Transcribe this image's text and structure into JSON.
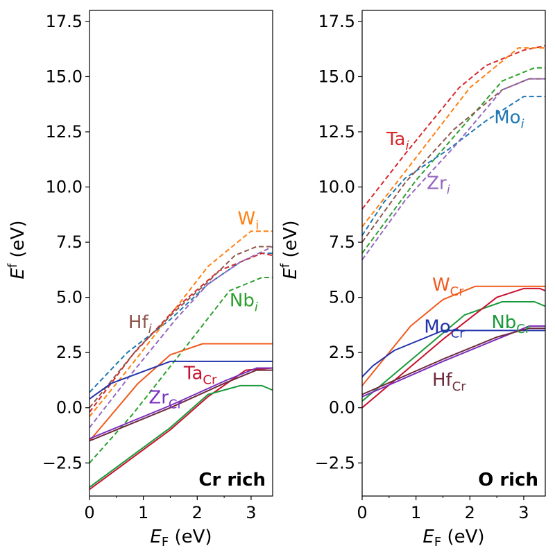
{
  "chart_data": [
    {
      "type": "line",
      "panel_title": "Cr rich",
      "title_placement": "bottom-right",
      "xlabel": {
        "main": "E",
        "sub": "F",
        "suffix": " (eV)"
      },
      "ylabel": {
        "main": "E",
        "sup": "f",
        "suffix": " (eV)"
      },
      "xlim": [
        0,
        3.4
      ],
      "ylim": [
        -4,
        18
      ],
      "xticks": [
        {
          "value": 0,
          "label": "0"
        },
        {
          "value": 1,
          "label": "1"
        },
        {
          "value": 2,
          "label": "2"
        },
        {
          "value": 3,
          "label": "3"
        }
      ],
      "yticks": [
        {
          "value": -2.5,
          "label": "−2.5"
        },
        {
          "value": 0,
          "label": "0.0"
        },
        {
          "value": 2.5,
          "label": "2.5"
        },
        {
          "value": 5,
          "label": "5.0"
        },
        {
          "value": 7.5,
          "label": "7.5"
        },
        {
          "value": 10,
          "label": "10.0"
        },
        {
          "value": 12.5,
          "label": "12.5"
        },
        {
          "value": 15,
          "label": "15.0"
        },
        {
          "value": 17.5,
          "label": "17.5"
        }
      ],
      "series": [
        {
          "name": "Mo_i",
          "style": "dashed",
          "color": "#1f77b4",
          "points": [
            [
              0,
              0.7
            ],
            [
              0.7,
              2.5
            ],
            [
              1.5,
              4.0
            ],
            [
              2.2,
              5.6
            ],
            [
              2.8,
              6.6
            ],
            [
              3.2,
              7.0
            ],
            [
              3.4,
              7.0
            ]
          ]
        },
        {
          "name": "W_i",
          "style": "dashed",
          "color": "#ff7f0e",
          "points": [
            [
              0,
              -0.4
            ],
            [
              0.8,
              2.0
            ],
            [
              1.5,
              4.2
            ],
            [
              2.2,
              6.4
            ],
            [
              3.0,
              8.0
            ],
            [
              3.4,
              8.0
            ]
          ]
        },
        {
          "name": "Nb_i",
          "style": "dashed",
          "color": "#2ca02c",
          "points": [
            [
              0,
              -2.5
            ],
            [
              0.8,
              -0.3
            ],
            [
              1.8,
              2.8
            ],
            [
              2.6,
              5.3
            ],
            [
              3.2,
              5.9
            ],
            [
              3.4,
              5.9
            ]
          ]
        },
        {
          "name": "Ta_i",
          "style": "dashed",
          "color": "#d62728",
          "points": [
            [
              0,
              -0.2
            ],
            [
              0.8,
              2.4
            ],
            [
              1.6,
              4.5
            ],
            [
              2.4,
              6.2
            ],
            [
              3.2,
              7.0
            ],
            [
              3.4,
              6.9
            ]
          ]
        },
        {
          "name": "Zr_i",
          "style": "dashed",
          "color": "#9467bd",
          "points": [
            [
              0,
              -0.9
            ],
            [
              0.8,
              1.6
            ],
            [
              1.6,
              4.0
            ],
            [
              2.2,
              5.6
            ],
            [
              2.8,
              6.6
            ],
            [
              3.4,
              7.3
            ]
          ]
        },
        {
          "name": "Hf_i",
          "style": "dashed",
          "color": "#8c564b",
          "points": [
            [
              0,
              0.0
            ],
            [
              0.9,
              2.7
            ],
            [
              1.6,
              4.4
            ],
            [
              2.2,
              5.7
            ],
            [
              2.7,
              6.9
            ],
            [
              3.1,
              7.3
            ],
            [
              3.4,
              7.3
            ]
          ]
        },
        {
          "name": "W_Cr",
          "style": "solid",
          "color": "#f05a1e",
          "points": [
            [
              0,
              -1.5
            ],
            [
              0.9,
              1.1
            ],
            [
              1.5,
              2.4
            ],
            [
              2.1,
              2.9
            ],
            [
              3.4,
              2.9
            ]
          ]
        },
        {
          "name": "Mo_Cr",
          "style": "solid",
          "color": "#2233aa",
          "points": [
            [
              0,
              0.4
            ],
            [
              0.4,
              1.1
            ],
            [
              1.5,
              2.1
            ],
            [
              3.4,
              2.1
            ]
          ]
        },
        {
          "name": "Ta_Cr",
          "style": "solid",
          "color": "#c8102e",
          "points": [
            [
              0,
              -3.7
            ],
            [
              1.5,
              -1.0
            ],
            [
              2.2,
              0.5
            ],
            [
              2.9,
              1.7
            ],
            [
              3.4,
              1.8
            ]
          ]
        },
        {
          "name": "Nb_Cr",
          "style": "solid",
          "color": "#1a9a3a",
          "points": [
            [
              0,
              -3.6
            ],
            [
              1.5,
              -0.9
            ],
            [
              2.2,
              0.6
            ],
            [
              2.8,
              1.0
            ],
            [
              3.2,
              1.0
            ],
            [
              3.4,
              0.8
            ]
          ]
        },
        {
          "name": "Zr_Cr",
          "style": "solid",
          "color": "#7b2fbe",
          "points": [
            [
              0,
              -1.4
            ],
            [
              1.5,
              0.1
            ],
            [
              2.5,
              1.2
            ],
            [
              3.1,
              1.8
            ],
            [
              3.4,
              1.8
            ]
          ]
        },
        {
          "name": "Hf_Cr",
          "style": "solid",
          "color": "#6e2c3c",
          "points": [
            [
              0,
              -1.5
            ],
            [
              1.5,
              0.0
            ],
            [
              2.5,
              1.1
            ],
            [
              3.1,
              1.7
            ],
            [
              3.4,
              1.7
            ]
          ]
        }
      ],
      "annotations": [
        {
          "main": "W",
          "sub": "i",
          "italic_sub": false,
          "color": "#ff7f0e",
          "x": 2.75,
          "y": 8.3
        },
        {
          "main": "Nb",
          "sub": "i",
          "italic_sub": true,
          "color": "#2ca02c",
          "x": 2.6,
          "y": 4.6
        },
        {
          "main": "Hf",
          "sub": "i",
          "italic_sub": true,
          "color": "#8c564b",
          "x": 0.72,
          "y": 3.6
        },
        {
          "main": "Ta",
          "sub": "Cr",
          "italic_sub": false,
          "color": "#c8102e",
          "x": 1.75,
          "y": 1.3
        },
        {
          "main": "Zr",
          "sub": "Cr",
          "italic_sub": false,
          "color": "#7b2fbe",
          "x": 1.1,
          "y": 0.2
        }
      ]
    },
    {
      "type": "line",
      "panel_title": "O rich",
      "title_placement": "bottom-right",
      "xlabel": {
        "main": "E",
        "sub": "F",
        "suffix": " (eV)"
      },
      "ylabel": {
        "main": "E",
        "sup": "f",
        "suffix": " (eV)"
      },
      "xlim": [
        0,
        3.4
      ],
      "ylim": [
        -4,
        18
      ],
      "xticks": [
        {
          "value": 0,
          "label": "0"
        },
        {
          "value": 1,
          "label": "1"
        },
        {
          "value": 2,
          "label": "2"
        },
        {
          "value": 3,
          "label": "3"
        }
      ],
      "yticks": [
        {
          "value": -2.5,
          "label": "−2.5"
        },
        {
          "value": 0,
          "label": "0.0"
        },
        {
          "value": 2.5,
          "label": "2.5"
        },
        {
          "value": 5,
          "label": "5.0"
        },
        {
          "value": 7.5,
          "label": "7.5"
        },
        {
          "value": 10,
          "label": "10.0"
        },
        {
          "value": 12.5,
          "label": "12.5"
        },
        {
          "value": 15,
          "label": "15.0"
        },
        {
          "value": 17.5,
          "label": "17.5"
        }
      ],
      "series": [
        {
          "name": "Ta_i",
          "style": "dashed",
          "color": "#d62728",
          "points": [
            [
              0,
              9.0
            ],
            [
              0.8,
              11.5
            ],
            [
              1.8,
              14.5
            ],
            [
              2.3,
              15.5
            ],
            [
              3.0,
              16.2
            ],
            [
              3.4,
              16.4
            ]
          ]
        },
        {
          "name": "W_i",
          "style": "dashed",
          "color": "#ff7f0e",
          "points": [
            [
              0,
              8.2
            ],
            [
              0.8,
              10.7
            ],
            [
              2.0,
              14.5
            ],
            [
              2.9,
              16.3
            ],
            [
              3.4,
              16.3
            ]
          ]
        },
        {
          "name": "Nb_i",
          "style": "dashed",
          "color": "#2ca02c",
          "points": [
            [
              0,
              7.0
            ],
            [
              1.0,
              10.3
            ],
            [
              2.6,
              14.8
            ],
            [
              3.2,
              15.4
            ],
            [
              3.4,
              15.4
            ]
          ]
        },
        {
          "name": "Mo_i",
          "style": "dashed",
          "color": "#1f77b4",
          "points": [
            [
              0,
              7.8
            ],
            [
              0.4,
              9.3
            ],
            [
              0.8,
              10.4
            ],
            [
              1.6,
              11.7
            ],
            [
              2.3,
              13.0
            ],
            [
              3.0,
              14.1
            ],
            [
              3.4,
              14.1
            ]
          ]
        },
        {
          "name": "Hf_i",
          "style": "dashed",
          "color": "#8c564b",
          "points": [
            [
              0,
              7.5
            ],
            [
              0.8,
              10.2
            ],
            [
              1.7,
              12.6
            ],
            [
              2.6,
              14.4
            ],
            [
              3.1,
              14.9
            ],
            [
              3.4,
              14.9
            ]
          ]
        },
        {
          "name": "Zr_i",
          "style": "dashed",
          "color": "#9467bd",
          "points": [
            [
              0,
              6.7
            ],
            [
              0.8,
              9.4
            ],
            [
              1.7,
              11.8
            ],
            [
              2.6,
              14.4
            ],
            [
              3.1,
              14.9
            ],
            [
              3.4,
              14.9
            ]
          ]
        },
        {
          "name": "W_Cr",
          "style": "solid",
          "color": "#f05a1e",
          "points": [
            [
              0,
              1.0
            ],
            [
              0.9,
              3.7
            ],
            [
              1.5,
              4.9
            ],
            [
              2.1,
              5.5
            ],
            [
              3.4,
              5.5
            ]
          ]
        },
        {
          "name": "Nb_Cr",
          "style": "solid",
          "color": "#1a9a3a",
          "points": [
            [
              0,
              0.3
            ],
            [
              1.9,
              4.2
            ],
            [
              2.6,
              4.8
            ],
            [
              3.2,
              4.8
            ],
            [
              3.4,
              4.6
            ]
          ]
        },
        {
          "name": "Ta_Cr",
          "style": "solid",
          "color": "#c8102e",
          "points": [
            [
              0,
              0.0
            ],
            [
              1.5,
              3.1
            ],
            [
              2.5,
              5.0
            ],
            [
              3.0,
              5.4
            ],
            [
              3.3,
              5.4
            ],
            [
              3.4,
              5.3
            ]
          ]
        },
        {
          "name": "Mo_Cr",
          "style": "solid",
          "color": "#2233aa",
          "points": [
            [
              0,
              1.4
            ],
            [
              0.2,
              1.9
            ],
            [
              0.6,
              2.6
            ],
            [
              1.5,
              3.5
            ],
            [
              3.4,
              3.5
            ]
          ]
        },
        {
          "name": "Zr_Cr",
          "style": "solid",
          "color": "#7b2fbe",
          "points": [
            [
              0,
              0.5
            ],
            [
              1.5,
              2.1
            ],
            [
              2.5,
              3.1
            ],
            [
              3.1,
              3.7
            ],
            [
              3.4,
              3.7
            ]
          ]
        },
        {
          "name": "Hf_Cr",
          "style": "solid",
          "color": "#6e2c3c",
          "points": [
            [
              0,
              0.6
            ],
            [
              1.5,
              2.2
            ],
            [
              2.5,
              3.2
            ],
            [
              3.1,
              3.6
            ],
            [
              3.4,
              3.6
            ]
          ]
        }
      ],
      "annotations": [
        {
          "main": "Ta",
          "sub": "i",
          "italic_sub": true,
          "color": "#d62728",
          "x": 0.45,
          "y": 11.9
        },
        {
          "main": "Mo",
          "sub": "i",
          "italic_sub": true,
          "color": "#1f77b4",
          "x": 2.45,
          "y": 12.9
        },
        {
          "main": "Zr",
          "sub": "i",
          "italic_sub": true,
          "color": "#9467bd",
          "x": 1.2,
          "y": 9.9
        },
        {
          "main": "W",
          "sub": "Cr",
          "italic_sub": false,
          "color": "#f05a1e",
          "x": 1.3,
          "y": 5.3
        },
        {
          "main": "Mo",
          "sub": "Cr",
          "italic_sub": false,
          "color": "#2233aa",
          "x": 1.15,
          "y": 3.4
        },
        {
          "main": "Nb",
          "sub": "Cr",
          "italic_sub": false,
          "color": "#1a9a3a",
          "x": 2.4,
          "y": 3.6
        },
        {
          "main": "Hf",
          "sub": "Cr",
          "italic_sub": false,
          "color": "#6e2c3c",
          "x": 1.3,
          "y": 1.0
        }
      ]
    }
  ]
}
